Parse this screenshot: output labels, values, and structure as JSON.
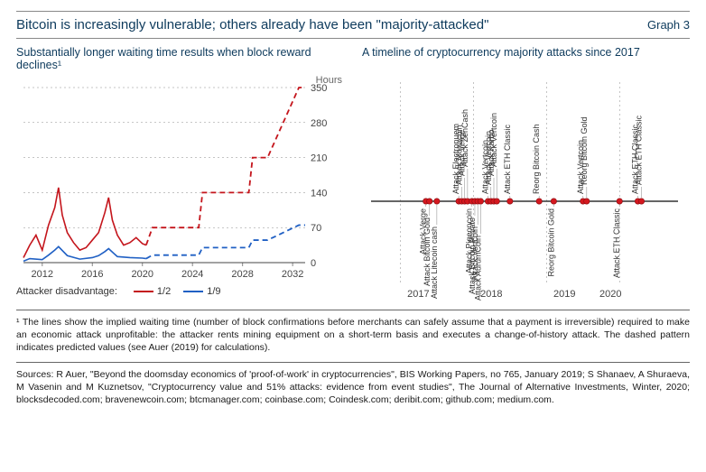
{
  "header": {
    "title": "Bitcoin is increasingly vulnerable; others already have been \"majority-attacked\"",
    "graph_label": "Graph 3"
  },
  "left": {
    "subtitle": "Substantially longer waiting time results when block reward declines¹",
    "y_axis_label": "Hours",
    "ylim": [
      0,
      350
    ],
    "yticks": [
      0,
      70,
      140,
      210,
      280,
      350
    ],
    "xticks": [
      2012,
      2016,
      2020,
      2024,
      2028,
      2032
    ],
    "series": {
      "half": {
        "color": "#c4151c",
        "label": "1/2",
        "solid": [
          {
            "x": 2010.5,
            "y": 10
          },
          {
            "x": 2011,
            "y": 35
          },
          {
            "x": 2011.5,
            "y": 55
          },
          {
            "x": 2012,
            "y": 25
          },
          {
            "x": 2012.5,
            "y": 75
          },
          {
            "x": 2013,
            "y": 110
          },
          {
            "x": 2013.3,
            "y": 150
          },
          {
            "x": 2013.6,
            "y": 95
          },
          {
            "x": 2014,
            "y": 60
          },
          {
            "x": 2014.5,
            "y": 40
          },
          {
            "x": 2015,
            "y": 25
          },
          {
            "x": 2015.5,
            "y": 30
          },
          {
            "x": 2016,
            "y": 45
          },
          {
            "x": 2016.5,
            "y": 60
          },
          {
            "x": 2017,
            "y": 100
          },
          {
            "x": 2017.3,
            "y": 130
          },
          {
            "x": 2017.6,
            "y": 85
          },
          {
            "x": 2018,
            "y": 55
          },
          {
            "x": 2018.5,
            "y": 35
          },
          {
            "x": 2019,
            "y": 40
          },
          {
            "x": 2019.5,
            "y": 50
          },
          {
            "x": 2020,
            "y": 38
          },
          {
            "x": 2020.3,
            "y": 35
          }
        ],
        "dashed": [
          {
            "x": 2020.3,
            "y": 35
          },
          {
            "x": 2020.8,
            "y": 70
          },
          {
            "x": 2024.5,
            "y": 70
          },
          {
            "x": 2024.8,
            "y": 140
          },
          {
            "x": 2028.5,
            "y": 140
          },
          {
            "x": 2028.8,
            "y": 210
          },
          {
            "x": 2030,
            "y": 210
          },
          {
            "x": 2032.5,
            "y": 350
          },
          {
            "x": 2033,
            "y": 350
          }
        ]
      },
      "ninth": {
        "color": "#2060c4",
        "label": "1/9",
        "solid": [
          {
            "x": 2010.5,
            "y": 3
          },
          {
            "x": 2011,
            "y": 8
          },
          {
            "x": 2012,
            "y": 6
          },
          {
            "x": 2012.5,
            "y": 15
          },
          {
            "x": 2013,
            "y": 25
          },
          {
            "x": 2013.3,
            "y": 32
          },
          {
            "x": 2014,
            "y": 14
          },
          {
            "x": 2015,
            "y": 7
          },
          {
            "x": 2016,
            "y": 10
          },
          {
            "x": 2016.5,
            "y": 14
          },
          {
            "x": 2017,
            "y": 22
          },
          {
            "x": 2017.3,
            "y": 28
          },
          {
            "x": 2018,
            "y": 12
          },
          {
            "x": 2019,
            "y": 10
          },
          {
            "x": 2020,
            "y": 9
          },
          {
            "x": 2020.3,
            "y": 8
          }
        ],
        "dashed": [
          {
            "x": 2020.3,
            "y": 8
          },
          {
            "x": 2020.8,
            "y": 15
          },
          {
            "x": 2024.5,
            "y": 15
          },
          {
            "x": 2024.8,
            "y": 30
          },
          {
            "x": 2028.5,
            "y": 30
          },
          {
            "x": 2028.8,
            "y": 45
          },
          {
            "x": 2030,
            "y": 45
          },
          {
            "x": 2032.5,
            "y": 75
          },
          {
            "x": 2033,
            "y": 75
          }
        ]
      }
    },
    "legend_title": "Attacker disadvantage:",
    "axis_color": "#888888",
    "tick_font": 11
  },
  "right": {
    "subtitle": "A timeline of cryptocurrency majority attacks since 2017",
    "xrange": [
      2016.6,
      2020.8
    ],
    "xticks": [
      2017,
      2018,
      2019,
      2020
    ],
    "marker_color": "#d4181f",
    "axis_color": "#888888",
    "events": [
      {
        "x": 2017.35,
        "label": "Attack Verge",
        "side": "below",
        "slot": 0
      },
      {
        "x": 2017.4,
        "label": "Attack Bitcoin Gold",
        "side": "below",
        "slot": 1
      },
      {
        "x": 2017.5,
        "label": "Attack Litecoin cash",
        "side": "below",
        "slot": 2
      },
      {
        "x": 2017.8,
        "label": "Attack Electronuem",
        "side": "above",
        "slot": 0
      },
      {
        "x": 2017.84,
        "label": "Attack Monacoin",
        "side": "above",
        "slot": 1
      },
      {
        "x": 2017.88,
        "label": "Attack Verge",
        "side": "above",
        "slot": 2
      },
      {
        "x": 2017.92,
        "label": "Attack ZenCash",
        "side": "above",
        "slot": 3
      },
      {
        "x": 2017.98,
        "label": "Attack Pigeoncoin",
        "side": "below",
        "slot": 0
      },
      {
        "x": 2018.02,
        "label": "Attack Bitcoin Private",
        "side": "below",
        "slot": 1
      },
      {
        "x": 2018.06,
        "label": "Attack Vertcoin",
        "side": "below",
        "slot": 2
      },
      {
        "x": 2018.1,
        "label": "Attack AurumCoin",
        "side": "below",
        "slot": 3
      },
      {
        "x": 2018.2,
        "label": "Attack Vertcoin",
        "side": "above",
        "slot": 0
      },
      {
        "x": 2018.24,
        "label": "Attack Vertcoin",
        "side": "above",
        "slot": 1
      },
      {
        "x": 2018.28,
        "label": "Attack Karbo",
        "side": "above",
        "slot": 2
      },
      {
        "x": 2018.32,
        "label": "Attack Vertcoin",
        "side": "above",
        "slot": 3
      },
      {
        "x": 2018.5,
        "label": "Attack ETH Classic",
        "side": "above",
        "slot": 0
      },
      {
        "x": 2018.9,
        "label": "Reorg Bitcoin Cash",
        "side": "above",
        "slot": 0
      },
      {
        "x": 2019.1,
        "label": "Reorg Bitcoin Gold",
        "side": "below",
        "slot": 0
      },
      {
        "x": 2019.5,
        "label": "Attack Vertcoin",
        "side": "above",
        "slot": 0
      },
      {
        "x": 2019.55,
        "label": "Reorg Bitcoin Gold",
        "side": "above",
        "slot": 1
      },
      {
        "x": 2020.0,
        "label": "Attack ETH Classic",
        "side": "below",
        "slot": 0
      },
      {
        "x": 2020.25,
        "label": "Attack ETH Classic",
        "side": "above",
        "slot": 0
      },
      {
        "x": 2020.3,
        "label": "Attack ETH Classic",
        "side": "above",
        "slot": 1
      }
    ]
  },
  "footnote": "¹  The lines show the implied waiting time (number of block confirmations before merchants can safely assume that a payment is irreversible) required to make an economic attack unprofitable: the attacker rents mining equipment on a short-term basis and executes a change-of-history attack. The dashed pattern indicates predicted values (see Auer (2019) for calculations).",
  "sources": "Sources: R Auer, \"Beyond the doomsday economics of 'proof-of-work' in cryptocurrencies\", BIS Working Papers, no 765, January 2019; S Shanaev, A Shuraeva, M Vasenin and M Kuznetsov, \"Cryptocurrency value and 51% attacks: evidence from event studies\", The Journal of Alternative Investments, Winter, 2020; blocksdecoded.com; bravenewcoin.com; btcmanager.com; coinbase.com; Coindesk.com; deribit.com; github.com; medium.com."
}
